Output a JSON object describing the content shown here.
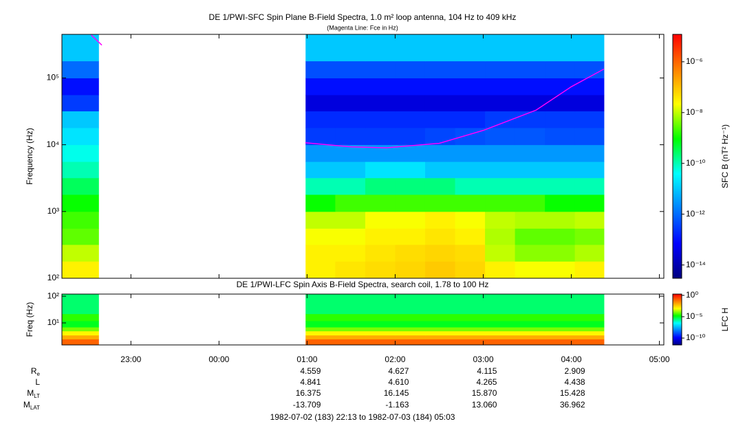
{
  "chart_data": [
    {
      "type": "heatmap",
      "title": "DE 1/PWI-SFC  Spin Plane B-Field Spectra, 1.0 m² loop antenna, 104 Hz to 409 kHz",
      "subtitle": "(Magenta Line: Fce in Hz)",
      "ylabel": "Frequency (Hz)",
      "colorbar_label": "SFC B (nT² Hz⁻¹)",
      "xlim": [
        22.2167,
        29.05
      ],
      "xticks": [
        23,
        24,
        25,
        26,
        27,
        28,
        29
      ],
      "ylim": [
        100,
        450000
      ],
      "ylog": true,
      "yticks": [
        {
          "value": 100,
          "label": "10²"
        },
        {
          "value": 1000,
          "label": "10³"
        },
        {
          "value": 10000,
          "label": "10⁴"
        },
        {
          "value": 100000,
          "label": "10⁵"
        }
      ],
      "clim": [
        3e-15,
        1.2e-05
      ],
      "clog": true,
      "cticks": [
        {
          "value": 1e-06,
          "label": "10⁻⁶"
        },
        {
          "value": 1e-08,
          "label": "10⁻⁸"
        },
        {
          "value": 1e-10,
          "label": "10⁻¹⁰"
        },
        {
          "value": 1e-12,
          "label": "10⁻¹²"
        },
        {
          "value": 1e-14,
          "label": "10⁻¹⁴"
        }
      ],
      "colormap": [
        "#000080",
        "#0000ff",
        "#0080ff",
        "#00ffff",
        "#00ff00",
        "#ffff00",
        "#ff8000",
        "#ff0000"
      ],
      "x_edges": [
        22.2167,
        22.633,
        24.983,
        25.32,
        25.66,
        26.0,
        26.34,
        26.68,
        27.02,
        27.36,
        27.7,
        28.04,
        28.37,
        29.05
      ],
      "y_edges": [
        100,
        180,
        320,
        560,
        1000,
        1800,
        3200,
        5600,
        10000,
        18000,
        32000,
        56000,
        100000,
        180000,
        450000
      ],
      "values": [
        [
          3e-08,
          null,
          3e-08,
          4e-08,
          5e-08,
          6e-08,
          8e-08,
          6e-08,
          3e-08,
          2e-08,
          2e-08,
          3e-08,
          null
        ],
        [
          1e-08,
          null,
          3e-08,
          3e-08,
          4e-08,
          5e-08,
          6e-08,
          5e-08,
          1e-08,
          5e-09,
          5e-09,
          8e-09,
          null
        ],
        [
          3e-09,
          null,
          2e-08,
          2e-08,
          3e-08,
          3e-08,
          4e-08,
          3e-08,
          8e-09,
          3e-09,
          3e-09,
          4e-09,
          null
        ],
        [
          2e-09,
          null,
          1e-08,
          1e-08,
          2e-08,
          2e-08,
          3e-08,
          2e-08,
          1e-08,
          8e-09,
          8e-09,
          1e-08,
          null
        ],
        [
          1e-09,
          null,
          1e-09,
          2e-09,
          2e-09,
          2e-09,
          2e-09,
          2e-09,
          2e-09,
          2e-09,
          1e-09,
          1e-09,
          null
        ],
        [
          3e-10,
          null,
          1e-10,
          1e-10,
          2e-10,
          2e-10,
          2e-10,
          1e-10,
          1e-10,
          1e-10,
          1e-10,
          1e-10,
          null
        ],
        [
          1e-10,
          null,
          1e-11,
          1e-11,
          2e-11,
          2e-11,
          1e-11,
          1e-11,
          1e-11,
          1e-11,
          1e-11,
          1e-11,
          null
        ],
        [
          5e-11,
          null,
          3e-12,
          3e-12,
          3e-12,
          3e-12,
          3e-12,
          3e-12,
          3e-12,
          3e-12,
          3e-12,
          3e-12,
          null
        ],
        [
          2e-11,
          null,
          3e-13,
          3e-13,
          3e-13,
          3e-13,
          4e-13,
          5e-13,
          6e-13,
          6e-13,
          5e-13,
          5e-13,
          null
        ],
        [
          1e-11,
          null,
          2e-13,
          2e-13,
          2e-13,
          2e-13,
          2e-13,
          2e-13,
          3e-13,
          3e-13,
          3e-13,
          3e-13,
          null
        ],
        [
          3e-13,
          null,
          3e-14,
          3e-14,
          3e-14,
          3e-14,
          3e-14,
          3e-14,
          3e-14,
          3e-14,
          3e-14,
          3e-14,
          null
        ],
        [
          1e-13,
          null,
          1e-13,
          1e-13,
          1e-13,
          1e-13,
          1e-13,
          1e-13,
          1e-13,
          1e-13,
          1e-13,
          1e-13,
          null
        ],
        [
          1e-12,
          null,
          5e-13,
          5e-13,
          5e-13,
          5e-13,
          5e-13,
          5e-13,
          5e-13,
          5e-13,
          5e-13,
          5e-13,
          null
        ],
        [
          1e-11,
          null,
          1e-11,
          1e-11,
          1e-11,
          1e-11,
          1e-11,
          1e-11,
          1e-11,
          1e-11,
          1e-11,
          1e-11,
          null
        ]
      ],
      "lines": [
        {
          "color": "#ff00ff",
          "x": [
            22.55,
            22.67,
            22.9,
            24.98,
            25.5,
            25.9,
            26.5,
            27.0,
            27.6,
            28.0,
            28.37
          ],
          "values": [
            440000,
            310000,
            null,
            10700,
            9300,
            9000,
            10500,
            16400,
            33000,
            74000,
            136000
          ]
        }
      ]
    },
    {
      "type": "heatmap",
      "title": "DE 1/PWI-LFC  Spin Axis B-Field Spectra, search coil, 1.78 to 100 Hz",
      "ylabel": "Freq (Hz)",
      "colorbar_label": "LFC H",
      "xlim": [
        22.2167,
        29.05
      ],
      "xticks": [
        {
          "value": 23,
          "label": "23:00"
        },
        {
          "value": 24,
          "label": "00:00"
        },
        {
          "value": 25,
          "label": "01:00"
        },
        {
          "value": 26,
          "label": "02:00"
        },
        {
          "value": 27,
          "label": "03:00"
        },
        {
          "value": 28,
          "label": "04:00"
        },
        {
          "value": 29,
          "label": "05:00"
        }
      ],
      "ylim": [
        1.5,
        120
      ],
      "ylog": true,
      "yticks": [
        {
          "value": 10,
          "label": "10¹"
        },
        {
          "value": 100,
          "label": "10²"
        }
      ],
      "clim": [
        2.5e-12,
        2
      ],
      "clog": true,
      "cticks": [
        {
          "value": 1,
          "label": "10⁰"
        },
        {
          "value": 1e-05,
          "label": "10⁻⁵"
        },
        {
          "value": 1e-10,
          "label": "10⁻¹⁰"
        }
      ],
      "colormap": [
        "#000080",
        "#0000ff",
        "#0080ff",
        "#00ffff",
        "#00ff00",
        "#ffff00",
        "#ff8000",
        "#ff0000"
      ],
      "x_edges": [
        22.2167,
        22.633,
        24.983,
        25.32,
        25.66,
        26.0,
        26.34,
        26.68,
        27.02,
        27.36,
        27.7,
        28.04,
        28.37,
        29.05
      ],
      "y_edges": [
        1.5,
        2.5,
        3.5,
        5,
        7,
        12,
        22,
        120
      ],
      "values": [
        [
          0.1,
          null,
          0.1,
          0.1,
          0.1,
          0.1,
          0.1,
          0.1,
          0.1,
          0.1,
          0.1,
          0.1,
          null
        ],
        [
          0.01,
          null,
          0.01,
          0.01,
          0.01,
          0.01,
          0.01,
          0.01,
          0.01,
          0.01,
          0.01,
          0.01,
          null
        ],
        [
          0.001,
          null,
          0.001,
          0.001,
          0.001,
          0.001,
          0.001,
          0.001,
          0.001,
          0.001,
          0.001,
          0.001,
          null
        ],
        [
          0.0001,
          null,
          0.0001,
          0.0001,
          0.0001,
          0.0001,
          0.0001,
          0.0001,
          0.0001,
          0.0001,
          0.0001,
          0.0001,
          null
        ],
        [
          1e-05,
          null,
          1e-05,
          1e-05,
          1e-05,
          1e-05,
          1e-05,
          1e-05,
          1e-05,
          1e-05,
          1e-05,
          1e-05,
          null
        ],
        [
          3e-05,
          null,
          3e-05,
          3e-05,
          3e-05,
          3e-05,
          3e-05,
          3e-05,
          3e-05,
          3e-05,
          3e-05,
          3e-05,
          null
        ],
        [
          3e-06,
          null,
          3e-06,
          3e-06,
          3e-06,
          3e-06,
          3e-06,
          3e-06,
          3e-06,
          3e-06,
          3e-06,
          3e-06,
          null
        ]
      ]
    }
  ],
  "ephemeris": {
    "rows": [
      {
        "label": "R",
        "sub": "e",
        "values": [
          "4.559",
          "4.627",
          "4.115",
          "2.909"
        ]
      },
      {
        "label": "L",
        "values": [
          "4.841",
          "4.610",
          "4.265",
          "4.438"
        ]
      },
      {
        "label": "M",
        "sub": "LT",
        "values": [
          "16.375",
          "16.145",
          "15.870",
          "15.428"
        ]
      },
      {
        "label": "M",
        "sub": "LAT",
        "values": [
          "-13.709",
          "-1.163",
          "13.060",
          "36.962"
        ]
      }
    ]
  },
  "footer": "1982-07-02 (183) 22:13 to 1982-07-03 (184) 05:03"
}
